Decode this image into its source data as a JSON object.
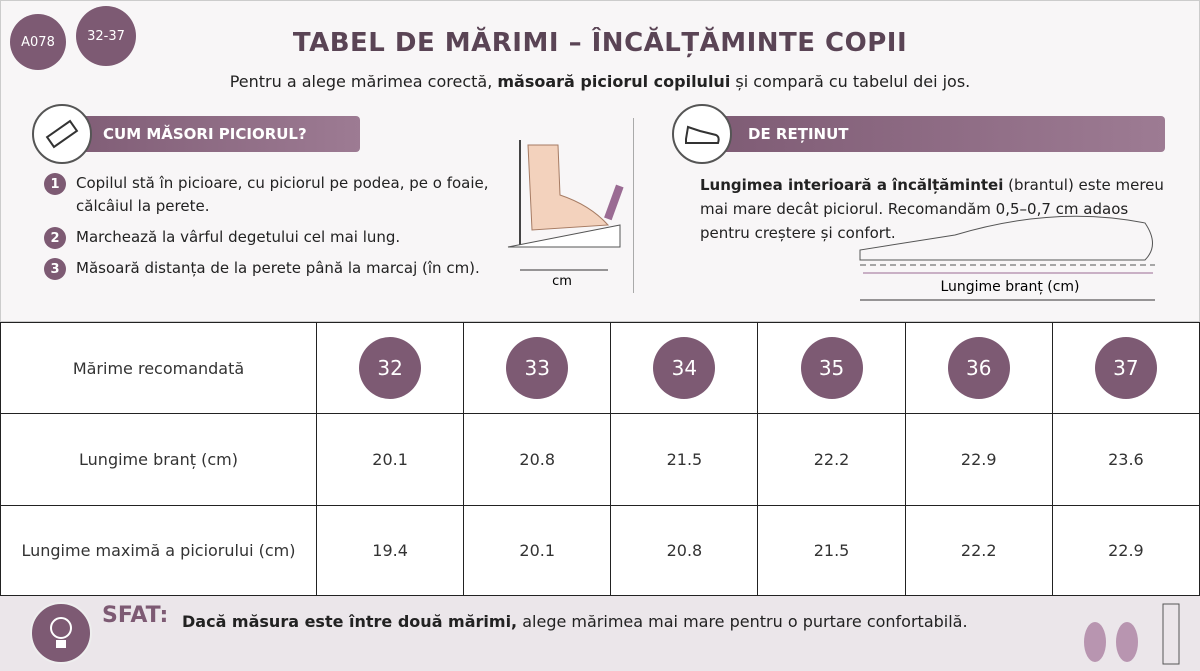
{
  "badges": [
    "A078",
    "32-37"
  ],
  "header": {
    "title": "TABEL DE MĂRIMI – ÎNCĂLȚĂMINTE COPII",
    "subtitle_start": "Pentru a alege mărimea corectă, ",
    "subtitle_bold": "măsoară piciorul copilului",
    "subtitle_end": " și compară cu tabelul dei jos."
  },
  "measure": {
    "heading": "CUM MĂSORI PICIORUL?",
    "steps": [
      {
        "number": "1",
        "text": "Copilul stă în picioare, cu piciorul pe podea, pe o foaie, călcâiul la perete."
      },
      {
        "number": "2",
        "text": "Marchează la vârful degetului cel mai lung."
      },
      {
        "number": "3",
        "text": "Măsoară distanța de la perete până la marcaj (în cm)."
      }
    ],
    "figure_label": "cm"
  },
  "note": {
    "heading": "DE REȚINUT",
    "text_bold": "Lungimea interioară a încălțămintei",
    "text": " (brantul) este mereu mai mare decât piciorul. Recomandăm 0,5–0,7 cm adaos pentru creștere și confort.",
    "figure_label": "Lungime branț (cm)"
  },
  "table": {
    "rows": [
      [
        "Mărime recomandată",
        "32",
        "33",
        "34",
        "35",
        "36",
        "37"
      ],
      [
        "Lungime branț (cm)",
        "20.1",
        "20.8",
        "21.5",
        "22.2",
        "22.9",
        "23.6"
      ],
      [
        "Lungime maximă a piciorului (cm)",
        "19.4",
        "20.1",
        "20.8",
        "21.5",
        "22.2",
        "22.9"
      ]
    ]
  },
  "tip": {
    "label": "SFAT:",
    "bold": "Dacă măsura este între două mărimi,",
    "text": " alege mărimea mai mare pentru o purtare confortabilă."
  }
}
